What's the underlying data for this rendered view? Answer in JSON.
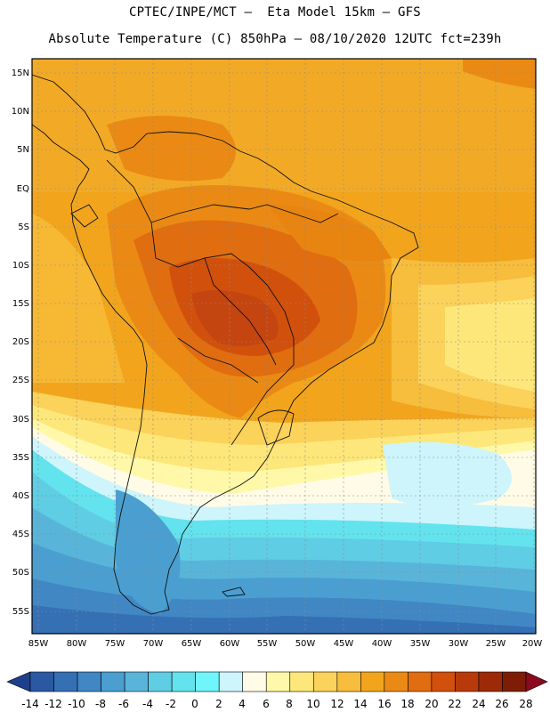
{
  "header": {
    "line1": "CPTEC/INPE/MCT –  Eta Model 15km – GFS",
    "line2": "Absolute Temperature (C) 850hPa – 08/10/2020 12UTC fct=239h"
  },
  "map": {
    "lat_labels": [
      "15N",
      "10N",
      "5N",
      "EQ",
      "5S",
      "10S",
      "15S",
      "20S",
      "25S",
      "30S",
      "35S",
      "40S",
      "45S",
      "50S",
      "55S"
    ],
    "lon_labels": [
      "85W",
      "80W",
      "75W",
      "70W",
      "65W",
      "60W",
      "55W",
      "50W",
      "45W",
      "40W",
      "35W",
      "30W",
      "25W",
      "20W"
    ]
  },
  "colorbar": {
    "labels": [
      "-14",
      "-12",
      "-10",
      "-8",
      "-6",
      "-4",
      "-2",
      "0",
      "2",
      "4",
      "6",
      "8",
      "10",
      "12",
      "14",
      "16",
      "18",
      "20",
      "22",
      "24",
      "26",
      "28"
    ],
    "colors": [
      "#1d3f8c",
      "#2a58a3",
      "#3570b5",
      "#4087c4",
      "#4a9fd0",
      "#58b5d9",
      "#5fcde4",
      "#63e3ee",
      "#6ff5fa",
      "#cdf5fb",
      "#fffbe6",
      "#fff8a8",
      "#fde77a",
      "#fbd25a",
      "#f7bd3c",
      "#f2a51c",
      "#ea8a14",
      "#e06d10",
      "#d0500c",
      "#b83a0a",
      "#9c2a08",
      "#7e1d06",
      "#8c0a1e"
    ]
  }
}
